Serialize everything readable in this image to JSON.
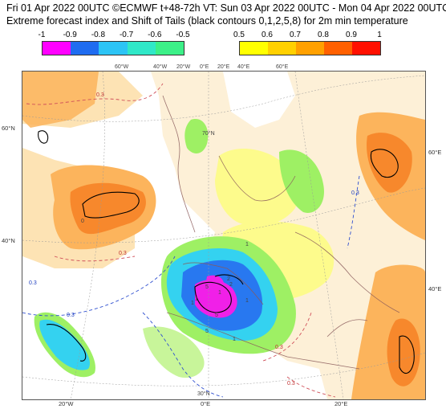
{
  "header": {
    "line1": "Fri 01 Apr 2022 00UTC ©ECMWF t+48-72h  VT: Sun 03 Apr 2022 00UTC - Mon 04 Apr 2022 00UTC",
    "line2": "Extreme forecast index and Shift of Tails (black contours 0,1,2,5,8) for 2m min temperature"
  },
  "legend_negative": {
    "labels": [
      "-1",
      "-0.9",
      "-0.8",
      "-0.7",
      "-0.6",
      "-0.5"
    ],
    "colors": [
      "#ff00ff",
      "#1f6cf0",
      "#2cc4f5",
      "#30e8c8",
      "#3cf088"
    ]
  },
  "legend_positive": {
    "labels": [
      "0.5",
      "0.6",
      "0.7",
      "0.8",
      "0.9",
      "1"
    ],
    "colors": [
      "#ffff00",
      "#ffd000",
      "#ffa000",
      "#ff6000",
      "#ff1000"
    ]
  },
  "map": {
    "lat_labels_left": [
      "60°N",
      "40°N"
    ],
    "lat_labels_right": [
      "60°E",
      "40°E"
    ],
    "lon_labels_top": [
      "60°W",
      "40°W",
      "20°W",
      "0°E",
      "20°E",
      "40°E",
      "60°E"
    ],
    "lon_labels_bottom": [
      "20°W",
      "0°E",
      "20°E"
    ],
    "interior_labels": [
      "70°N",
      "30°N"
    ],
    "contour_labels": [
      "0.3",
      "0.3",
      "0.3",
      "0.3",
      "0.3",
      "0",
      "1",
      "2",
      "1",
      "5",
      "5",
      "1",
      "1",
      "1",
      "2",
      "5",
      "1",
      "0.3",
      "0.3"
    ],
    "colors": {
      "light_orange": "#fde3b4",
      "orange": "#fcb45c",
      "dark_orange": "#f7882c",
      "yellow": "#fdfb8c",
      "green": "#9ef064",
      "green_light": "#c8f59a",
      "cyan": "#34d2f0",
      "blue": "#2878f0",
      "magenta": "#f020e8",
      "land_tan": "#fbe6bc",
      "dashed_red": "#d0505a",
      "dashed_blue": "#3050d0"
    }
  }
}
